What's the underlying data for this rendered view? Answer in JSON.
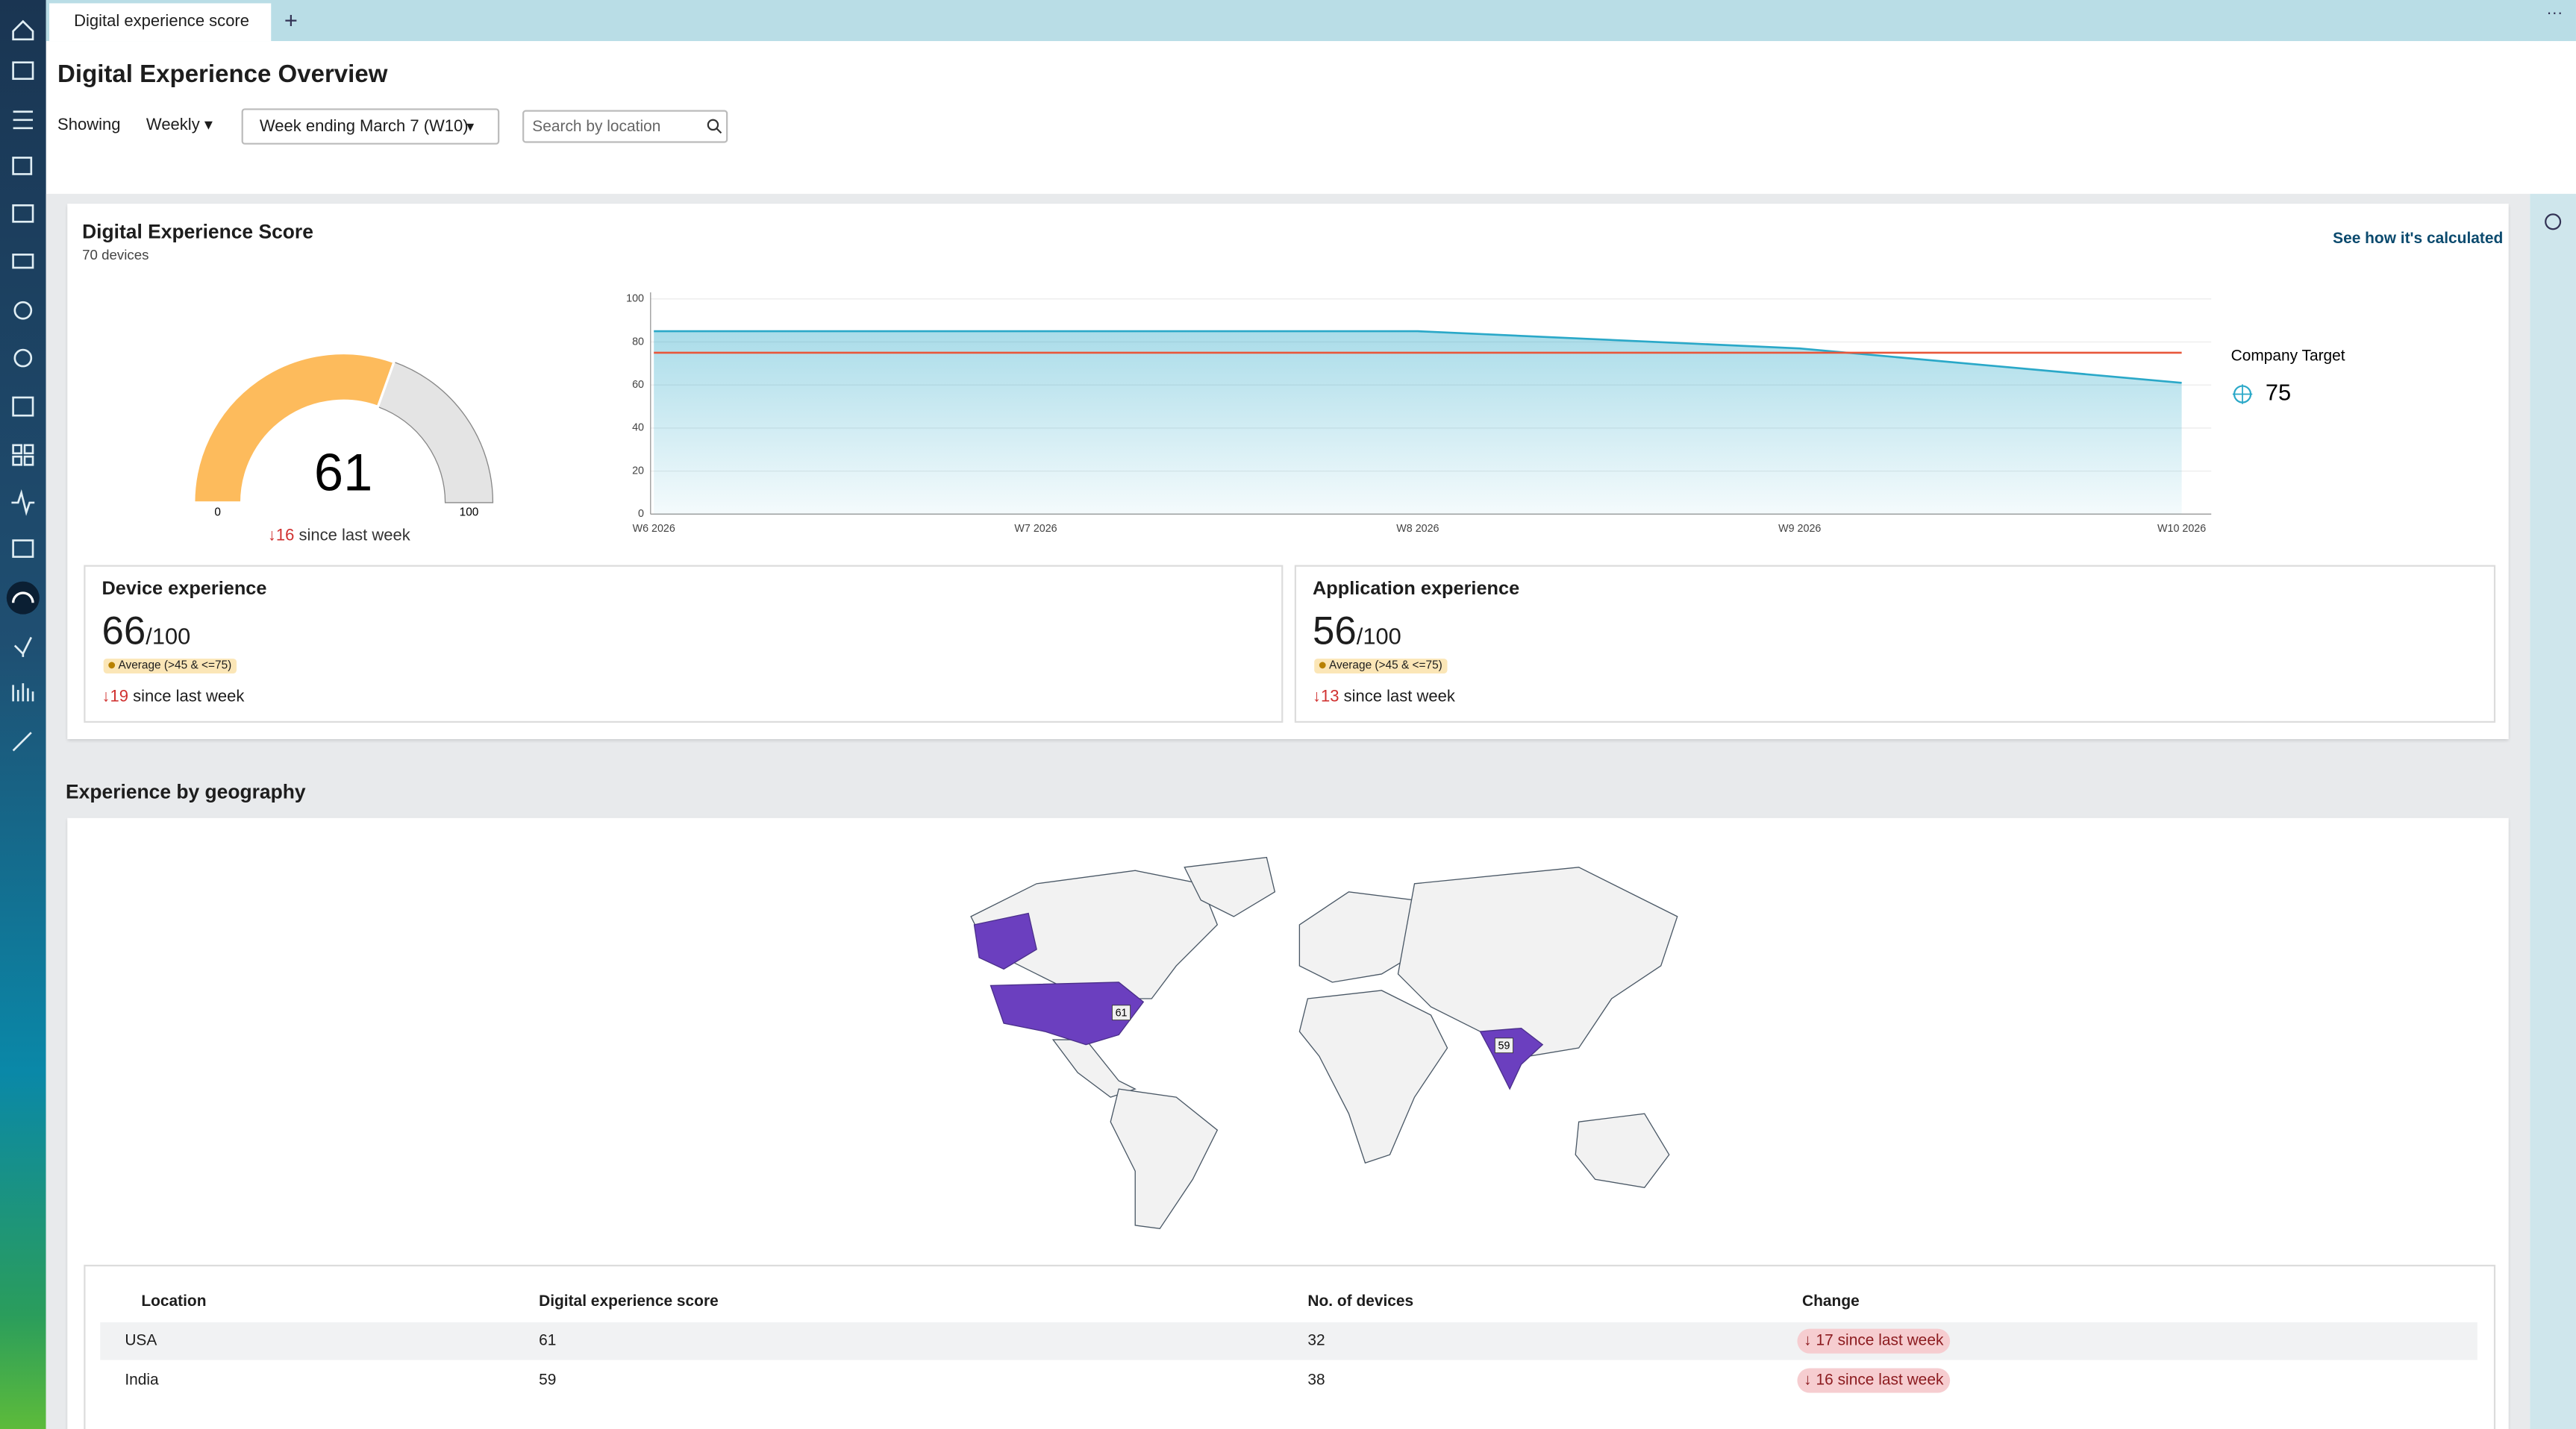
{
  "tab": {
    "title": "Digital experience score"
  },
  "header": {
    "title": "Digital Experience Overview",
    "showing_label": "Showing",
    "period": "Weekly",
    "week": "Week ending March 7 (W10)",
    "search_placeholder": "Search by location"
  },
  "score_card": {
    "title": "Digital Experience Score",
    "devices": "70 devices",
    "link": "See how it's calculated",
    "gauge": {
      "value": 61,
      "min": 0,
      "max": 100,
      "change": 16,
      "change_label": "since last week"
    },
    "chart": {
      "type": "area",
      "categories": [
        "W6 2026",
        "W7 2026",
        "W8 2026",
        "W9 2026",
        "W10 2026"
      ],
      "values": [
        85,
        85,
        85,
        77,
        61
      ],
      "color": "#2aa8c8",
      "ylim": [
        0,
        100
      ],
      "yticks": [
        0,
        20,
        40,
        60,
        80,
        100
      ],
      "target_name": "Company Target",
      "target": 75,
      "target_color": "#e8563a"
    }
  },
  "device_experience": {
    "title": "Device experience",
    "score": 66,
    "suffix": "/100",
    "badge": "Average (>45 & <=75)",
    "change": 19,
    "change_label": "since last week"
  },
  "application_experience": {
    "title": "Application experience",
    "score": 56,
    "suffix": "/100",
    "badge": "Average (>45 & <=75)",
    "change": 13,
    "change_label": "since last week"
  },
  "geography": {
    "title": "Experience by geography",
    "table": {
      "headers": [
        "Location",
        "Digital experience score",
        "No. of devices",
        "Change"
      ],
      "rows": [
        [
          "USA",
          61,
          32,
          "17 since last week"
        ],
        [
          "India",
          59,
          38,
          "16 since last week"
        ]
      ]
    }
  }
}
